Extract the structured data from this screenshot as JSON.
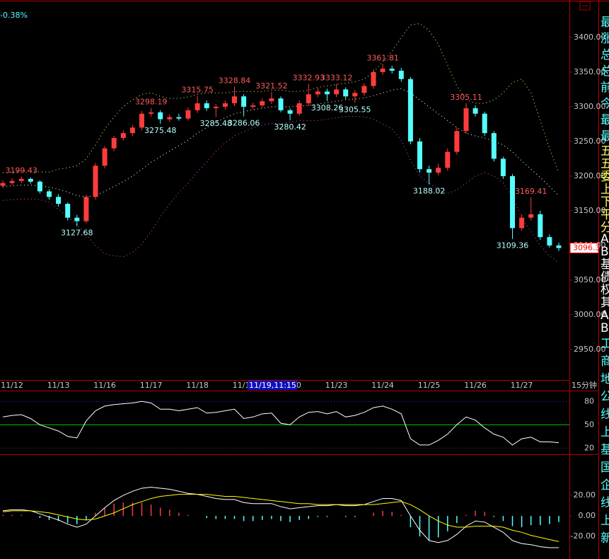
{
  "chart_data": {
    "type": "candlestick",
    "change_label": "-0.38%",
    "period_label": "15分钟",
    "cursor_label": "11/19,11:15",
    "up_color": "#ff3c3c",
    "down_color": "#54ffff",
    "categories": [
      null,
      "11/12",
      null,
      null,
      null,
      null,
      "11/13",
      null,
      null,
      null,
      null,
      "11/16",
      null,
      null,
      null,
      null,
      "11/17",
      null,
      null,
      null,
      null,
      "11/18",
      null,
      null,
      null,
      null,
      "11/19",
      null,
      null,
      null,
      null,
      "11/20",
      null,
      null,
      null,
      null,
      "11/23",
      null,
      null,
      null,
      null,
      "11/24",
      null,
      null,
      null,
      null,
      "11/25",
      null,
      null,
      null,
      null,
      "11/26",
      null,
      null,
      null,
      null,
      "11/27",
      null,
      null,
      null,
      null
    ],
    "open": [
      3186,
      3190,
      3193,
      3196,
      3192,
      3178,
      3170,
      3160,
      3140,
      3135,
      3170,
      3215,
      3240,
      3255,
      3262,
      3270,
      3290,
      3292,
      3282,
      3285,
      3283,
      3295,
      3305,
      3298,
      3300,
      3305,
      3315,
      3300,
      3302,
      3308,
      3312,
      3295,
      3290,
      3305,
      3318,
      3322,
      3318,
      3325,
      3315,
      3320,
      3330,
      3350,
      3355,
      3352,
      3340,
      3250,
      3210,
      3205,
      3212,
      3235,
      3265,
      3298,
      3290,
      3262,
      3225,
      3200,
      3125,
      3140,
      3145,
      3112,
      3100
    ],
    "high": [
      3194,
      3197,
      3199.43,
      3198,
      3194,
      3181,
      3174,
      3162,
      3144,
      3173,
      3219,
      3243,
      3258,
      3266,
      3274,
      3294,
      3298.19,
      3295,
      3289,
      3290,
      3299,
      3315.75,
      3309,
      3304,
      3309,
      3328.84,
      3318,
      3306,
      3312,
      3321.52,
      3315,
      3298,
      3309,
      3332.93,
      3327,
      3326,
      3333.12,
      3328,
      3324,
      3334,
      3354,
      3361.81,
      3359,
      3356,
      3343,
      3255,
      3215,
      3218,
      3240,
      3270,
      3305.11,
      3302,
      3293,
      3265,
      3228,
      3203,
      3145,
      3169.41,
      3150,
      3116,
      3104
    ],
    "low": [
      3183,
      3187,
      3190,
      3189,
      3175,
      3166,
      3156,
      3136,
      3127.68,
      3132,
      3166,
      3211,
      3236,
      3251,
      3258,
      3266,
      3286,
      3275.48,
      3278,
      3280,
      3280,
      3291,
      3294,
      3285.48,
      3296,
      3301,
      3286.06,
      3297,
      3299,
      3304,
      3292,
      3280.42,
      3287,
      3301,
      3314,
      3308.26,
      3314,
      3311,
      3305.55,
      3316,
      3326,
      3346,
      3348,
      3336,
      3246,
      3205,
      3188.02,
      3201,
      3208,
      3231,
      3261,
      3286,
      3258,
      3221,
      3196,
      3109.36,
      3121,
      3136,
      3108,
      3097,
      3092
    ],
    "close": [
      3190,
      3193,
      3196,
      3192,
      3178,
      3170,
      3160,
      3140,
      3135,
      3170,
      3215,
      3240,
      3255,
      3262,
      3270,
      3290,
      3292,
      3282,
      3285,
      3283,
      3295,
      3305,
      3298,
      3300,
      3305,
      3315,
      3300,
      3302,
      3308,
      3312,
      3295,
      3290,
      3305,
      3318,
      3322,
      3318,
      3325,
      3315,
      3320,
      3330,
      3350,
      3355,
      3352,
      3340,
      3250,
      3210,
      3205,
      3212,
      3235,
      3265,
      3298,
      3290,
      3262,
      3225,
      3200,
      3125,
      3140,
      3145,
      3112,
      3100,
      3096.3
    ],
    "annotate_high": [
      2,
      16,
      21,
      25,
      29,
      33,
      36,
      41,
      50,
      57
    ],
    "annotate_low": [
      8,
      17,
      23,
      26,
      31,
      35,
      38,
      46,
      55
    ],
    "bands": [
      {
        "color": "#d2d25a",
        "values": [
          3205,
          3206,
          3207,
          3207,
          3206,
          3206,
          3210,
          3212,
          3215,
          3225,
          3245,
          3268,
          3285,
          3300,
          3310,
          3318,
          3320,
          3315,
          3312,
          3312,
          3314,
          3318,
          3320,
          3320,
          3320,
          3322,
          3322,
          3322,
          3322,
          3324,
          3324,
          3322,
          3322,
          3324,
          3328,
          3330,
          3332,
          3334,
          3336,
          3340,
          3350,
          3365,
          3380,
          3400,
          3418,
          3420,
          3410,
          3390,
          3360,
          3330,
          3310,
          3305,
          3305,
          3310,
          3320,
          3335,
          3340,
          3320,
          3280,
          3240,
          3205
        ]
      },
      {
        "color": "#e0e0e0",
        "values": [
          3185,
          3186,
          3187,
          3187,
          3186,
          3184,
          3181,
          3177,
          3172,
          3170,
          3172,
          3178,
          3185,
          3192,
          3200,
          3210,
          3220,
          3228,
          3236,
          3244,
          3252,
          3262,
          3270,
          3278,
          3284,
          3290,
          3293,
          3296,
          3298,
          3300,
          3300,
          3300,
          3301,
          3302,
          3304,
          3306,
          3308,
          3310,
          3311,
          3313,
          3316,
          3320,
          3324,
          3326,
          3320,
          3310,
          3300,
          3290,
          3280,
          3270,
          3262,
          3258,
          3255,
          3250,
          3245,
          3235,
          3222,
          3210,
          3198,
          3185,
          3172
        ]
      },
      {
        "color": "#c040c0",
        "values": [
          3165,
          3166,
          3167,
          3167,
          3166,
          3162,
          3152,
          3142,
          3129,
          3115,
          3100,
          3088,
          3085,
          3084,
          3090,
          3102,
          3120,
          3141,
          3160,
          3176,
          3190,
          3206,
          3220,
          3236,
          3248,
          3258,
          3264,
          3270,
          3274,
          3276,
          3276,
          3278,
          3280,
          3280,
          3280,
          3282,
          3284,
          3286,
          3286,
          3286,
          3282,
          3275,
          3268,
          3252,
          3222,
          3200,
          3190,
          3180,
          3175,
          3180,
          3190,
          3200,
          3205,
          3200,
          3190,
          3170,
          3140,
          3120,
          3100,
          3085,
          3075
        ]
      }
    ],
    "ylim": [
      2908,
      3454
    ],
    "yticks": [
      {
        "value": 2950,
        "label": "2950.00"
      },
      {
        "value": 3000,
        "label": "3000.00"
      },
      {
        "value": 3050,
        "label": "3050.00"
      },
      {
        "value": 3100,
        "label": "3100.00"
      },
      {
        "value": 3150,
        "label": "3150.00"
      },
      {
        "value": 3200,
        "label": "3200.00"
      },
      {
        "value": 3250,
        "label": "3250.00"
      },
      {
        "value": 3300,
        "label": "3300.00"
      },
      {
        "value": 3350,
        "label": "3350.00"
      },
      {
        "value": 3400,
        "label": "3400.00"
      }
    ],
    "rsi": {
      "color": "#ffffff",
      "ylim": [
        13,
        93
      ],
      "yticks": [
        20,
        50,
        80
      ],
      "guide_colors": [
        "#3232c8",
        "#00c800",
        "#3232c8"
      ],
      "values": [
        60,
        62,
        63,
        58,
        50,
        46,
        42,
        35,
        33,
        55,
        68,
        74,
        76,
        77,
        78,
        80,
        78,
        70,
        70,
        68,
        70,
        72,
        65,
        66,
        68,
        70,
        58,
        60,
        64,
        65,
        52,
        50,
        60,
        66,
        67,
        64,
        67,
        60,
        62,
        66,
        72,
        74,
        70,
        64,
        32,
        24,
        24,
        30,
        38,
        50,
        60,
        56,
        46,
        38,
        34,
        24,
        32,
        34,
        28,
        28,
        27
      ]
    },
    "macd": {
      "dif_color": "#ffffff",
      "dea_color": "#ffff00",
      "ylim": [
        -42,
        58
      ],
      "yticks": [
        {
          "value": -20,
          "label": "-20.00"
        },
        {
          "value": 0,
          "label": "0.00"
        },
        {
          "value": 20,
          "label": "20.00"
        }
      ],
      "dif": [
        5,
        6,
        6,
        5,
        2,
        -1,
        -4,
        -8,
        -11,
        -8,
        0,
        8,
        15,
        20,
        24,
        27,
        28,
        27,
        26,
        24,
        22,
        21,
        19,
        17,
        16,
        16,
        13,
        12,
        12,
        12,
        9,
        7,
        8,
        9,
        10,
        10,
        11,
        10,
        10,
        11,
        14,
        17,
        17,
        15,
        0,
        -14,
        -24,
        -26,
        -24,
        -18,
        -10,
        -5,
        -6,
        -11,
        -16,
        -24,
        -27,
        -28,
        -30,
        -31,
        -31
      ],
      "dea": [
        4,
        5,
        5,
        5,
        4,
        3,
        1,
        -1,
        -3,
        -4,
        -3,
        0,
        3,
        7,
        11,
        14,
        17,
        19,
        20,
        21,
        21,
        21,
        21,
        20,
        19,
        19,
        18,
        17,
        16,
        15,
        14,
        13,
        12,
        12,
        11,
        11,
        11,
        11,
        11,
        11,
        11,
        12,
        13,
        14,
        11,
        6,
        0,
        -5,
        -9,
        -11,
        -11,
        -10,
        -10,
        -10,
        -11,
        -14,
        -16,
        -19,
        -21,
        -23,
        -25
      ],
      "hist": [
        1,
        1,
        1,
        0,
        -2,
        -4,
        -5,
        -7,
        -8,
        -4,
        3,
        8,
        12,
        13,
        13,
        13,
        11,
        8,
        6,
        3,
        1,
        0,
        -2,
        -3,
        -3,
        -3,
        -5,
        -5,
        -4,
        -3,
        -5,
        -6,
        -4,
        -3,
        -1,
        -1,
        0,
        -1,
        -1,
        0,
        3,
        5,
        4,
        1,
        -11,
        -20,
        -24,
        -21,
        -15,
        -7,
        1,
        5,
        4,
        -1,
        -5,
        -10,
        -11,
        -9,
        -9,
        -8,
        -6
      ]
    },
    "side_text": [
      {
        "color": "#54ffff",
        "chars": [
          "最",
          "涨",
          "总",
          "总",
          "前",
          "今",
          "最",
          "最"
        ]
      },
      {
        "color": "#ffff54",
        "chars": [
          "五",
          "五",
          "委",
          "上",
          "下",
          "平",
          "分"
        ]
      },
      {
        "color": "#ffffff",
        "chars": [
          "A",
          "B",
          "基",
          "债",
          "权",
          "其",
          "A",
          "B"
        ]
      },
      {
        "color": "#54ffff",
        "chars": [
          "工",
          "商",
          "地",
          "公",
          "线",
          "上",
          "基",
          "国",
          "企",
          "线",
          "上",
          "新"
        ]
      }
    ]
  }
}
